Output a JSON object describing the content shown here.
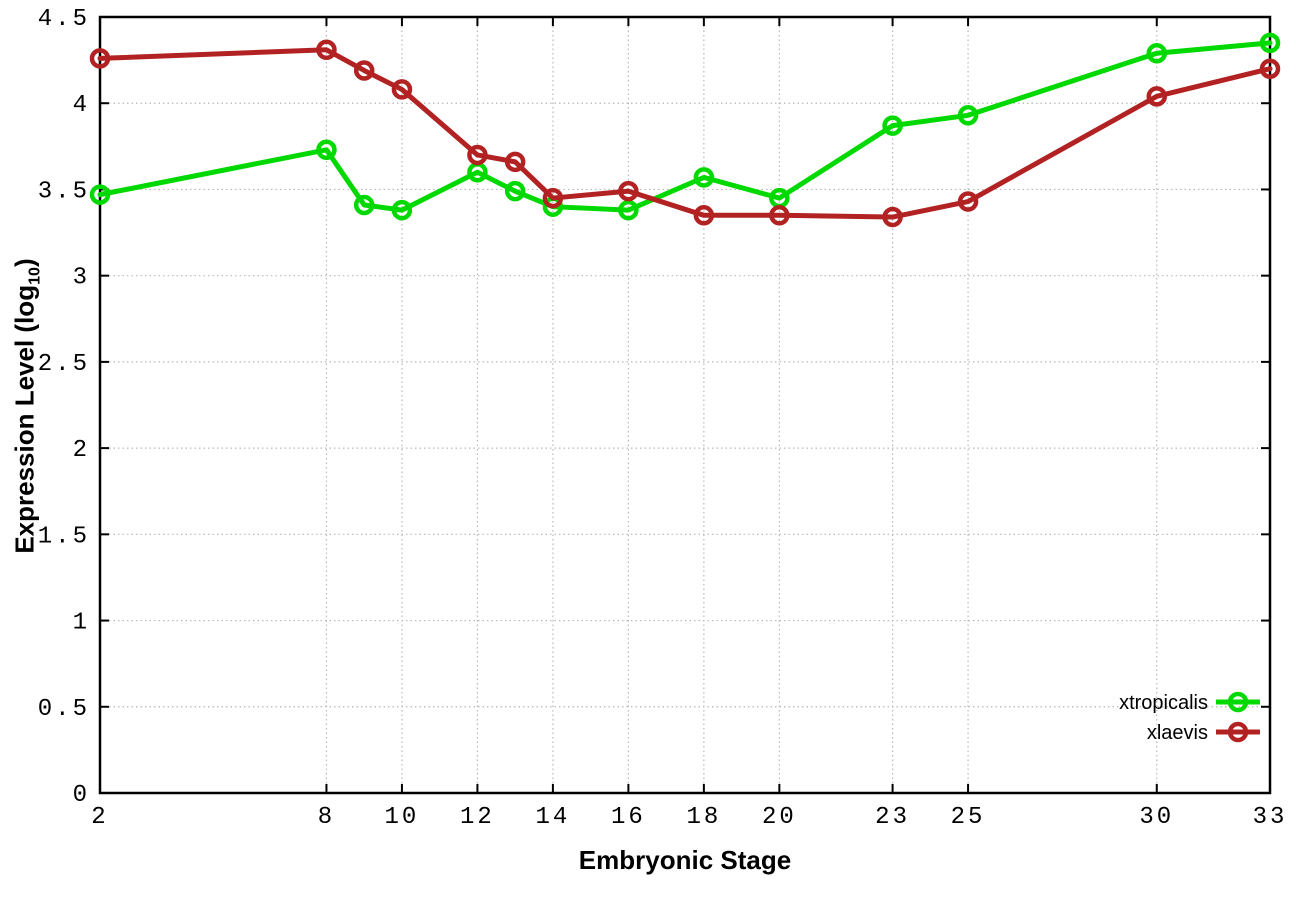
{
  "chart_data": {
    "type": "line",
    "title": "",
    "xlabel": "Embryonic Stage",
    "ylabel": "Expression Level (log10)",
    "ylabel_parts": {
      "main": "Expression Level (log",
      "sub": "10",
      "close": ")"
    },
    "xlim": [
      2,
      33
    ],
    "ylim": [
      0,
      4.5
    ],
    "xticks": [
      2,
      8,
      10,
      12,
      14,
      16,
      18,
      20,
      23,
      25,
      30,
      33
    ],
    "yticks": [
      0,
      0.5,
      1,
      1.5,
      2,
      2.5,
      3,
      3.5,
      4,
      4.5
    ],
    "grid": true,
    "legend_position": "bottom-right",
    "x": [
      2,
      8,
      9,
      10,
      12,
      13,
      14,
      16,
      18,
      20,
      23,
      25,
      30,
      33
    ],
    "series": [
      {
        "name": "xtropicalis",
        "color": "#00d900",
        "values": [
          3.47,
          3.73,
          3.41,
          3.38,
          3.6,
          3.49,
          3.4,
          3.38,
          3.57,
          3.45,
          3.87,
          3.93,
          4.29,
          4.35
        ]
      },
      {
        "name": "xlaevis",
        "color": "#b22222",
        "values": [
          4.26,
          4.31,
          4.19,
          4.08,
          3.7,
          3.66,
          3.45,
          3.49,
          3.35,
          3.35,
          3.34,
          3.43,
          4.04,
          4.2
        ]
      }
    ],
    "colors": {
      "grid": "#b8b8b8",
      "frame": "#000000",
      "background": "#ffffff"
    }
  }
}
